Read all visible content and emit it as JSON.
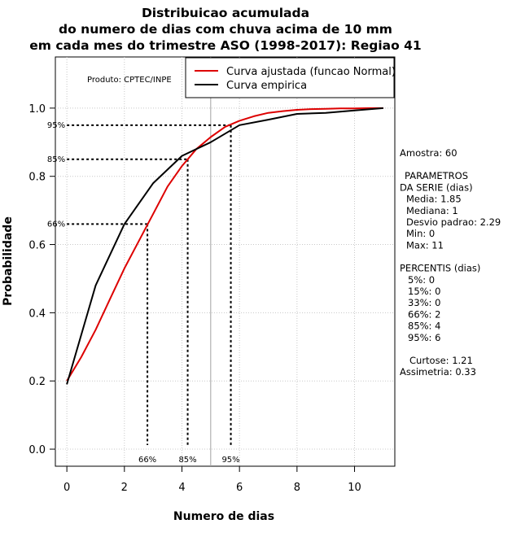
{
  "chart_data": {
    "type": "line",
    "title": [
      "Distribuicao acumulada",
      "do numero de dias com chuva acima de 10 mm",
      "em cada mes do trimestre ASO (1998-2017): Regiao 41"
    ],
    "xlabel": "Numero de dias",
    "ylabel": "Probabilidade",
    "xlim": [
      -0.4,
      11.4
    ],
    "ylim": [
      -0.05,
      1.15
    ],
    "xticks": [
      "0",
      "2",
      "4",
      "6",
      "8",
      "10"
    ],
    "yticks": [
      "0.0",
      "0.2",
      "0.4",
      "0.6",
      "0.8",
      "1.0"
    ],
    "grid": true,
    "legend": {
      "position": "top-right",
      "entries": [
        "Curva ajustada (funcao Normal)",
        "Curva empirica"
      ]
    },
    "produto": "Produto: CPTEC/INPE",
    "series": [
      {
        "name": "Curva ajustada (funcao Normal)",
        "color": "#dd0000",
        "x": [
          0,
          0.5,
          1,
          1.5,
          2,
          2.5,
          3,
          3.5,
          4,
          4.5,
          5,
          5.5,
          6,
          6.5,
          7,
          7.5,
          8,
          8.5,
          9,
          9.5,
          10,
          10.5,
          11
        ],
        "y": [
          0.2,
          0.27,
          0.35,
          0.44,
          0.53,
          0.61,
          0.69,
          0.77,
          0.83,
          0.88,
          0.915,
          0.945,
          0.963,
          0.976,
          0.986,
          0.991,
          0.995,
          0.997,
          0.998,
          0.999,
          0.999,
          1.0,
          1.0
        ]
      },
      {
        "name": "Curva empirica",
        "color": "#000000",
        "x": [
          0,
          1,
          2,
          3,
          4,
          5,
          6,
          7,
          8,
          9,
          10,
          11
        ],
        "y": [
          0.19,
          0.48,
          0.66,
          0.78,
          0.86,
          0.9,
          0.95,
          0.966,
          0.983,
          0.986,
          0.993,
          1.0
        ]
      }
    ],
    "percentile_markers": [
      {
        "label": "66%",
        "prob": 0.66,
        "x": 2.8
      },
      {
        "label": "85%",
        "prob": 0.85,
        "x": 4.2
      },
      {
        "label": "95%",
        "prob": 0.95,
        "x": 5.7
      }
    ],
    "vline_x": 5,
    "side_text": [
      "Amostra: 60",
      "",
      "PARAMETROS",
      "DA SERIE (dias)",
      "Media: 1.85",
      "Mediana: 1",
      "Desvio padrao: 2.29",
      "Min: 0",
      "Max: 11",
      "",
      "PERCENTIS (dias)",
      "5%: 0",
      "15%: 0",
      "33%: 0",
      "66%: 2",
      "85%: 4",
      "95%: 6",
      "",
      "Curtose: 1.21",
      "Assimetria: 0.33"
    ]
  }
}
